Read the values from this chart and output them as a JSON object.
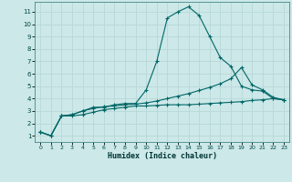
{
  "xlabel": "Humidex (Indice chaleur)",
  "bg_color": "#cce8e8",
  "grid_color": "#b8d8d8",
  "line_color": "#006666",
  "xlim": [
    -0.5,
    23.5
  ],
  "ylim": [
    0.5,
    11.8
  ],
  "xticks": [
    0,
    1,
    2,
    3,
    4,
    5,
    6,
    7,
    8,
    9,
    10,
    11,
    12,
    13,
    14,
    15,
    16,
    17,
    18,
    19,
    20,
    21,
    22,
    23
  ],
  "yticks": [
    1,
    2,
    3,
    4,
    5,
    6,
    7,
    8,
    9,
    10,
    11
  ],
  "series": [
    [
      1.3,
      1.0,
      2.6,
      2.6,
      2.7,
      2.9,
      3.1,
      3.2,
      3.3,
      3.4,
      3.4,
      3.45,
      3.5,
      3.5,
      3.5,
      3.55,
      3.6,
      3.65,
      3.7,
      3.75,
      3.85,
      3.9,
      4.0,
      3.9
    ],
    [
      1.3,
      1.0,
      2.6,
      2.7,
      3.0,
      3.3,
      3.3,
      3.5,
      3.6,
      3.6,
      4.7,
      7.0,
      10.5,
      11.0,
      11.4,
      10.7,
      9.0,
      7.3,
      6.6,
      5.0,
      4.7,
      4.6,
      4.0,
      3.9
    ],
    [
      1.3,
      1.0,
      2.6,
      2.7,
      3.0,
      3.2,
      3.35,
      3.4,
      3.5,
      3.55,
      3.65,
      3.8,
      4.0,
      4.2,
      4.4,
      4.65,
      4.9,
      5.2,
      5.6,
      6.5,
      5.1,
      4.7,
      4.1,
      3.9
    ]
  ]
}
